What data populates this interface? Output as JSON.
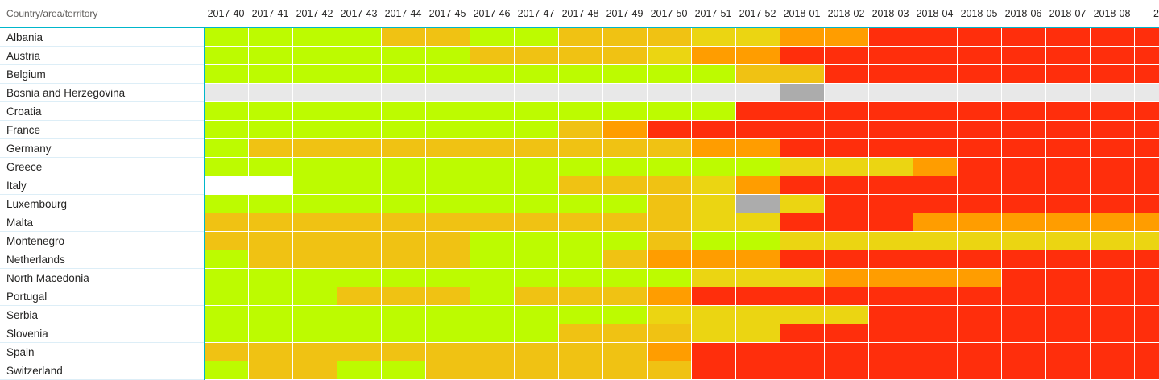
{
  "visual": {
    "type": "heatmap-matrix",
    "corner_label": "Country/area/territory",
    "accent_color": "#00b6cb",
    "grid_line_color": "#ffffff",
    "label_separator_color": "#ddeef7",
    "header_text_color": "#252423",
    "corner_text_color": "#605e5c"
  },
  "columns": [
    "2017-40",
    "2017-41",
    "2017-42",
    "2017-43",
    "2017-44",
    "2017-45",
    "2017-46",
    "2017-47",
    "2017-48",
    "2017-49",
    "2017-50",
    "2017-51",
    "2017-52",
    "2018-01",
    "2018-02",
    "2018-03",
    "2018-04",
    "2018-05",
    "2018-06",
    "2018-07",
    "2018-08",
    "2"
  ],
  "color_levels": {
    "G": "#bdfb00",
    "A": "#f0c213",
    "Y": "#ebd512",
    "O": "#ff9d00",
    "R": "#ff2e0c",
    "LG": "#e8e8e8",
    "DG": "#acacac",
    "W": "#ffffff"
  },
  "rows": [
    {
      "label": "Albania",
      "cells": [
        "G",
        "G",
        "G",
        "G",
        "A",
        "A",
        "G",
        "G",
        "A",
        "A",
        "A",
        "Y",
        "Y",
        "O",
        "O",
        "R",
        "R",
        "R",
        "R",
        "R",
        "R",
        "R"
      ]
    },
    {
      "label": "Austria",
      "cells": [
        "G",
        "G",
        "G",
        "G",
        "G",
        "G",
        "A",
        "A",
        "A",
        "A",
        "Y",
        "O",
        "O",
        "R",
        "R",
        "R",
        "R",
        "R",
        "R",
        "R",
        "R",
        "R"
      ]
    },
    {
      "label": "Belgium",
      "cells": [
        "G",
        "G",
        "G",
        "G",
        "G",
        "G",
        "G",
        "G",
        "G",
        "G",
        "G",
        "G",
        "A",
        "A",
        "R",
        "R",
        "R",
        "R",
        "R",
        "R",
        "R",
        "R"
      ]
    },
    {
      "label": "Bosnia and Herzegovina",
      "cells": [
        "LG",
        "LG",
        "LG",
        "LG",
        "LG",
        "LG",
        "LG",
        "LG",
        "LG",
        "LG",
        "LG",
        "LG",
        "LG",
        "DG",
        "LG",
        "LG",
        "LG",
        "LG",
        "LG",
        "LG",
        "LG",
        "LG"
      ]
    },
    {
      "label": "Croatia",
      "cells": [
        "G",
        "G",
        "G",
        "G",
        "G",
        "G",
        "G",
        "G",
        "G",
        "G",
        "G",
        "G",
        "R",
        "R",
        "R",
        "R",
        "R",
        "R",
        "R",
        "R",
        "R",
        "R"
      ]
    },
    {
      "label": "France",
      "cells": [
        "G",
        "G",
        "G",
        "G",
        "G",
        "G",
        "G",
        "G",
        "A",
        "O",
        "R",
        "R",
        "R",
        "R",
        "R",
        "R",
        "R",
        "R",
        "R",
        "R",
        "R",
        "R"
      ]
    },
    {
      "label": "Germany",
      "cells": [
        "G",
        "A",
        "A",
        "A",
        "A",
        "A",
        "A",
        "A",
        "A",
        "A",
        "A",
        "O",
        "O",
        "R",
        "R",
        "R",
        "R",
        "R",
        "R",
        "R",
        "R",
        "R"
      ]
    },
    {
      "label": "Greece",
      "cells": [
        "G",
        "G",
        "G",
        "G",
        "G",
        "G",
        "G",
        "G",
        "G",
        "G",
        "G",
        "G",
        "G",
        "Y",
        "Y",
        "Y",
        "O",
        "R",
        "R",
        "R",
        "R",
        "R"
      ]
    },
    {
      "label": "Italy",
      "cells": [
        "W",
        "W",
        "G",
        "G",
        "G",
        "G",
        "G",
        "G",
        "A",
        "A",
        "A",
        "Y",
        "O",
        "R",
        "R",
        "R",
        "R",
        "R",
        "R",
        "R",
        "R",
        "R"
      ]
    },
    {
      "label": "Luxembourg",
      "cells": [
        "G",
        "G",
        "G",
        "G",
        "G",
        "G",
        "G",
        "G",
        "G",
        "G",
        "A",
        "Y",
        "DG",
        "Y",
        "R",
        "R",
        "R",
        "R",
        "R",
        "R",
        "R",
        "R"
      ]
    },
    {
      "label": "Malta",
      "cells": [
        "A",
        "A",
        "A",
        "A",
        "A",
        "A",
        "A",
        "A",
        "A",
        "A",
        "A",
        "Y",
        "Y",
        "R",
        "R",
        "R",
        "O",
        "O",
        "O",
        "O",
        "O",
        "O"
      ]
    },
    {
      "label": "Montenegro",
      "cells": [
        "A",
        "A",
        "A",
        "A",
        "A",
        "A",
        "G",
        "G",
        "G",
        "G",
        "A",
        "G",
        "G",
        "Y",
        "Y",
        "Y",
        "Y",
        "Y",
        "Y",
        "Y",
        "Y",
        "Y"
      ]
    },
    {
      "label": "Netherlands",
      "cells": [
        "G",
        "A",
        "A",
        "A",
        "A",
        "A",
        "G",
        "G",
        "G",
        "A",
        "O",
        "O",
        "O",
        "R",
        "R",
        "R",
        "R",
        "R",
        "R",
        "R",
        "R",
        "R"
      ]
    },
    {
      "label": "North Macedonia",
      "cells": [
        "G",
        "G",
        "G",
        "G",
        "G",
        "G",
        "G",
        "G",
        "G",
        "G",
        "G",
        "Y",
        "Y",
        "Y",
        "O",
        "O",
        "O",
        "O",
        "R",
        "R",
        "R",
        "R"
      ]
    },
    {
      "label": "Portugal",
      "cells": [
        "G",
        "G",
        "G",
        "A",
        "A",
        "A",
        "G",
        "A",
        "A",
        "A",
        "O",
        "R",
        "R",
        "R",
        "R",
        "R",
        "R",
        "R",
        "R",
        "R",
        "R",
        "R"
      ]
    },
    {
      "label": "Serbia",
      "cells": [
        "G",
        "G",
        "G",
        "G",
        "G",
        "G",
        "G",
        "G",
        "G",
        "G",
        "Y",
        "Y",
        "Y",
        "Y",
        "Y",
        "R",
        "R",
        "R",
        "R",
        "R",
        "R",
        "R"
      ]
    },
    {
      "label": "Slovenia",
      "cells": [
        "G",
        "G",
        "G",
        "G",
        "G",
        "G",
        "G",
        "G",
        "A",
        "A",
        "A",
        "Y",
        "Y",
        "R",
        "R",
        "R",
        "R",
        "R",
        "R",
        "R",
        "R",
        "R"
      ]
    },
    {
      "label": "Spain",
      "cells": [
        "A",
        "A",
        "A",
        "A",
        "A",
        "A",
        "A",
        "A",
        "A",
        "A",
        "O",
        "R",
        "R",
        "R",
        "R",
        "R",
        "R",
        "R",
        "R",
        "R",
        "R",
        "R"
      ]
    },
    {
      "label": "Switzerland",
      "cells": [
        "G",
        "A",
        "A",
        "G",
        "G",
        "A",
        "A",
        "A",
        "A",
        "A",
        "A",
        "R",
        "R",
        "R",
        "R",
        "R",
        "R",
        "R",
        "R",
        "R",
        "R",
        "R"
      ]
    }
  ]
}
